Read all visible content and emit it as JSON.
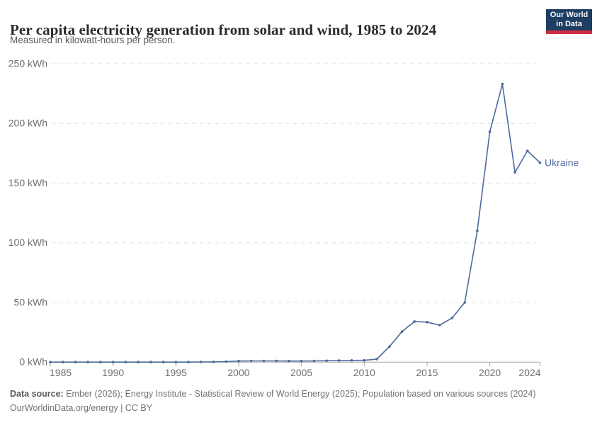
{
  "header": {
    "title": "Per capita electricity generation from solar and wind, 1985 to 2024",
    "subtitle": "Measured in kilowatt-hours per person.",
    "logo": {
      "line1": "Our World",
      "line2": "in Data",
      "bg_color": "#1d3d63",
      "accent_color": "#cf2e41"
    }
  },
  "chart_data": {
    "type": "line",
    "title": "Per capita electricity generation from solar and wind, 1985 to 2024",
    "subtitle": "Measured in kilowatt-hours per person.",
    "xlabel": "",
    "ylabel": "kWh",
    "xlim": [
      1985,
      2024
    ],
    "ylim": [
      0,
      250
    ],
    "grid": "horizontal-dashed",
    "legend_position": "end-of-line-label",
    "x_tick_labels": [
      1985,
      1990,
      1995,
      2000,
      2005,
      2010,
      2015,
      2020,
      2024
    ],
    "y_tick_labels": [
      "0 kWh",
      "50 kWh",
      "100 kWh",
      "150 kWh",
      "200 kWh",
      "250 kWh"
    ],
    "y_tick_values": [
      0,
      50,
      100,
      150,
      200,
      250
    ],
    "series": [
      {
        "name": "Ukraine",
        "color": "#4c6a9c",
        "x": [
          1985,
          1986,
          1987,
          1988,
          1989,
          1990,
          1991,
          1992,
          1993,
          1994,
          1995,
          1996,
          1997,
          1998,
          1999,
          2000,
          2001,
          2002,
          2003,
          2004,
          2005,
          2006,
          2007,
          2008,
          2009,
          2010,
          2011,
          2012,
          2013,
          2014,
          2015,
          2016,
          2017,
          2018,
          2019,
          2020,
          2021,
          2022,
          2023,
          2024
        ],
        "values": [
          0,
          0,
          0,
          0,
          0,
          0,
          0,
          0,
          0,
          0,
          0,
          0,
          0.1,
          0.2,
          0.4,
          0.9,
          1,
          1,
          1,
          0.9,
          0.9,
          1,
          1.1,
          1.3,
          1.4,
          1.5,
          2.5,
          13,
          25.5,
          34,
          33.5,
          31,
          37,
          50,
          110,
          193,
          233,
          159,
          177,
          167
        ]
      }
    ],
    "colors": {
      "gridline": "#e0e0e0",
      "axis_line": "#a6a6a6",
      "tick_label": "#6e6e6e",
      "entity_label": "#4c6a9c"
    }
  },
  "footer": {
    "source_label": "Data source:",
    "source_text": " Ember (2026); Energy Institute - Statistical Review of World Energy (2025); Population based on various sources (2024)",
    "link_line": "OurWorldinData.org/energy | CC BY"
  }
}
